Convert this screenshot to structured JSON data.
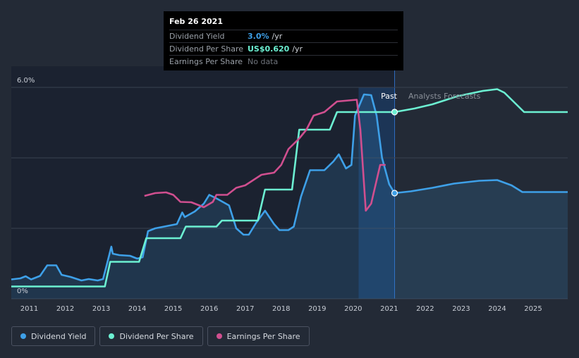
{
  "tooltip": {
    "date": "Feb 26 2021",
    "rows": [
      {
        "label": "Dividend Yield",
        "value": "3.0%",
        "unit": "/yr"
      },
      {
        "label": "Dividend Per Share",
        "value": "US$0.620",
        "unit": "/yr"
      },
      {
        "label": "Earnings Per Share",
        "value": "No data",
        "unit": ""
      }
    ]
  },
  "labels": {
    "past": "Past",
    "forecast": "Analysts Forecasts"
  },
  "legend": [
    {
      "label": "Dividend Yield",
      "color": "#3ea0e8"
    },
    {
      "label": "Dividend Per Share",
      "color": "#6cf0d2"
    },
    {
      "label": "Earnings Per Share",
      "color": "#d04f8f"
    }
  ],
  "chart_data": {
    "type": "line",
    "xlim": [
      2010.5,
      2025.96
    ],
    "ylim": [
      0,
      6.0
    ],
    "y_ticks": [
      {
        "value": 0,
        "label": "0%"
      },
      {
        "value": 6.0,
        "label": "6.0%"
      }
    ],
    "x_ticks": [
      "2011",
      "2012",
      "2013",
      "2014",
      "2015",
      "2016",
      "2017",
      "2018",
      "2019",
      "2020",
      "2021",
      "2022",
      "2023",
      "2024",
      "2025"
    ],
    "x_tick_values": [
      2011,
      2012,
      2013,
      2014,
      2015,
      2016,
      2017,
      2018,
      2019,
      2020,
      2021,
      2022,
      2023,
      2024,
      2025
    ],
    "today": 2021.15,
    "past_highlight_start": 2020.15,
    "series": [
      {
        "name": "Dividend Yield",
        "color": "#3ea0e8",
        "fill": true,
        "points": [
          [
            2010.5,
            0.55
          ],
          [
            2010.75,
            0.58
          ],
          [
            2010.9,
            0.64
          ],
          [
            2011.05,
            0.55
          ],
          [
            2011.3,
            0.65
          ],
          [
            2011.5,
            0.95
          ],
          [
            2011.75,
            0.95
          ],
          [
            2011.9,
            0.68
          ],
          [
            2012.15,
            0.62
          ],
          [
            2012.45,
            0.52
          ],
          [
            2012.65,
            0.56
          ],
          [
            2012.9,
            0.52
          ],
          [
            2013.05,
            0.56
          ],
          [
            2013.15,
            0.95
          ],
          [
            2013.28,
            1.48
          ],
          [
            2013.32,
            1.28
          ],
          [
            2013.5,
            1.24
          ],
          [
            2013.8,
            1.22
          ],
          [
            2014.0,
            1.14
          ],
          [
            2014.15,
            1.18
          ],
          [
            2014.3,
            1.92
          ],
          [
            2014.5,
            2.0
          ],
          [
            2014.8,
            2.06
          ],
          [
            2015.1,
            2.12
          ],
          [
            2015.25,
            2.45
          ],
          [
            2015.32,
            2.32
          ],
          [
            2015.6,
            2.48
          ],
          [
            2015.85,
            2.7
          ],
          [
            2016.0,
            2.95
          ],
          [
            2016.2,
            2.85
          ],
          [
            2016.55,
            2.65
          ],
          [
            2016.75,
            2.0
          ],
          [
            2016.95,
            1.82
          ],
          [
            2017.1,
            1.82
          ],
          [
            2017.3,
            2.15
          ],
          [
            2017.55,
            2.5
          ],
          [
            2017.8,
            2.12
          ],
          [
            2017.95,
            1.95
          ],
          [
            2018.2,
            1.95
          ],
          [
            2018.35,
            2.05
          ],
          [
            2018.55,
            2.9
          ],
          [
            2018.8,
            3.65
          ],
          [
            2019.0,
            3.65
          ],
          [
            2019.2,
            3.65
          ],
          [
            2019.45,
            3.9
          ],
          [
            2019.6,
            4.1
          ],
          [
            2019.8,
            3.7
          ],
          [
            2019.95,
            3.8
          ],
          [
            2020.05,
            5.2
          ],
          [
            2020.3,
            5.8
          ],
          [
            2020.5,
            5.78
          ],
          [
            2020.65,
            5.2
          ],
          [
            2020.8,
            4.0
          ],
          [
            2021.0,
            3.25
          ],
          [
            2021.15,
            3.0
          ],
          [
            2021.6,
            3.05
          ],
          [
            2022.2,
            3.15
          ],
          [
            2022.8,
            3.27
          ],
          [
            2023.5,
            3.35
          ],
          [
            2024.0,
            3.37
          ],
          [
            2024.4,
            3.22
          ],
          [
            2024.7,
            3.03
          ],
          [
            2025.96,
            3.03
          ]
        ]
      },
      {
        "name": "Dividend Per Share",
        "color": "#6cf0d2",
        "fill": false,
        "points": [
          [
            2010.5,
            0.35
          ],
          [
            2013.1,
            0.35
          ],
          [
            2013.25,
            1.05
          ],
          [
            2014.05,
            1.05
          ],
          [
            2014.25,
            1.72
          ],
          [
            2015.2,
            1.72
          ],
          [
            2015.35,
            2.05
          ],
          [
            2016.2,
            2.05
          ],
          [
            2016.35,
            2.22
          ],
          [
            2017.35,
            2.22
          ],
          [
            2017.55,
            3.1
          ],
          [
            2018.3,
            3.1
          ],
          [
            2018.5,
            4.8
          ],
          [
            2019.35,
            4.8
          ],
          [
            2019.55,
            5.3
          ],
          [
            2021.15,
            5.3
          ],
          [
            2021.7,
            5.4
          ],
          [
            2022.2,
            5.52
          ],
          [
            2022.9,
            5.75
          ],
          [
            2023.6,
            5.9
          ],
          [
            2024.0,
            5.95
          ],
          [
            2024.2,
            5.85
          ],
          [
            2024.5,
            5.55
          ],
          [
            2024.75,
            5.3
          ],
          [
            2025.96,
            5.3
          ]
        ]
      },
      {
        "name": "Earnings Per Share",
        "color": "#d04f8f",
        "fill": false,
        "points": [
          [
            2014.2,
            2.92
          ],
          [
            2014.5,
            3.0
          ],
          [
            2014.8,
            3.02
          ],
          [
            2015.0,
            2.95
          ],
          [
            2015.2,
            2.75
          ],
          [
            2015.5,
            2.74
          ],
          [
            2015.85,
            2.6
          ],
          [
            2016.1,
            2.75
          ],
          [
            2016.2,
            2.95
          ],
          [
            2016.5,
            2.95
          ],
          [
            2016.75,
            3.15
          ],
          [
            2017.0,
            3.22
          ],
          [
            2017.45,
            3.52
          ],
          [
            2017.8,
            3.58
          ],
          [
            2018.0,
            3.8
          ],
          [
            2018.2,
            4.25
          ],
          [
            2018.5,
            4.55
          ],
          [
            2018.7,
            4.8
          ],
          [
            2018.9,
            5.2
          ],
          [
            2019.2,
            5.3
          ],
          [
            2019.55,
            5.6
          ],
          [
            2020.1,
            5.65
          ],
          [
            2020.2,
            4.8
          ],
          [
            2020.35,
            2.5
          ],
          [
            2020.5,
            2.7
          ],
          [
            2020.75,
            3.8
          ],
          [
            2020.9,
            3.8
          ]
        ]
      }
    ]
  }
}
